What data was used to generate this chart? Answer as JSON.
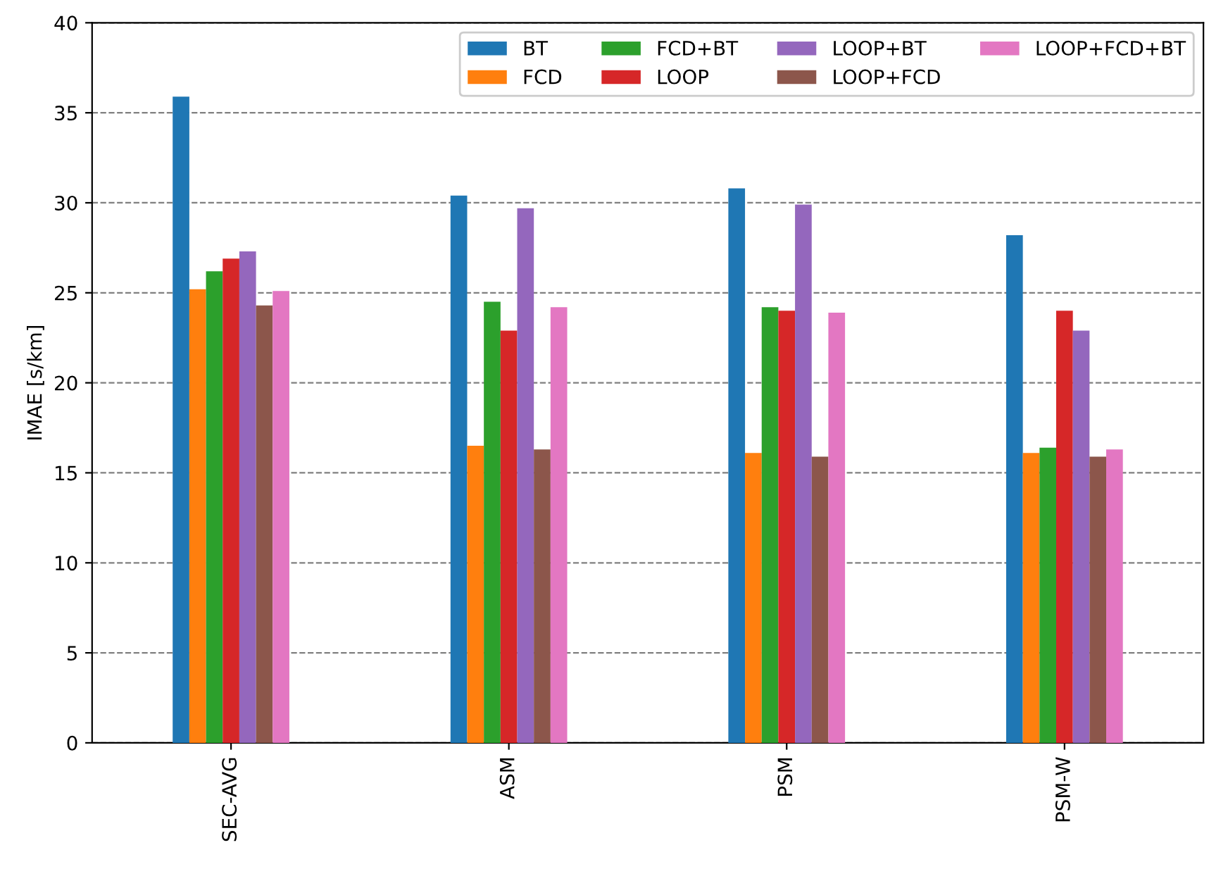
{
  "chart_data": {
    "type": "bar",
    "ylabel": "IMAE [s/km]",
    "categories": [
      "SEC-AVG",
      "ASM",
      "PSM",
      "PSM-W"
    ],
    "series": [
      {
        "name": "BT",
        "color": "#1f77b4",
        "values": [
          35.9,
          30.4,
          30.8,
          28.2
        ]
      },
      {
        "name": "FCD",
        "color": "#ff7f0e",
        "values": [
          25.2,
          16.5,
          16.1,
          16.1
        ]
      },
      {
        "name": "FCD+BT",
        "color": "#2ca02c",
        "values": [
          26.2,
          24.5,
          24.2,
          16.4
        ]
      },
      {
        "name": "LOOP",
        "color": "#d62728",
        "values": [
          26.9,
          22.9,
          24.0,
          24.0
        ]
      },
      {
        "name": "LOOP+BT",
        "color": "#9467bd",
        "values": [
          27.3,
          29.7,
          29.9,
          22.9
        ]
      },
      {
        "name": "LOOP+FCD",
        "color": "#8c564b",
        "values": [
          24.3,
          16.3,
          15.9,
          15.9
        ]
      },
      {
        "name": "LOOP+FCD+BT",
        "color": "#e377c2",
        "values": [
          25.1,
          24.2,
          23.9,
          16.3
        ]
      }
    ],
    "ylim": [
      0,
      40
    ],
    "yticks": [
      0,
      5,
      10,
      15,
      20,
      25,
      30,
      35,
      40
    ],
    "grid": "y",
    "legend": "top right"
  }
}
